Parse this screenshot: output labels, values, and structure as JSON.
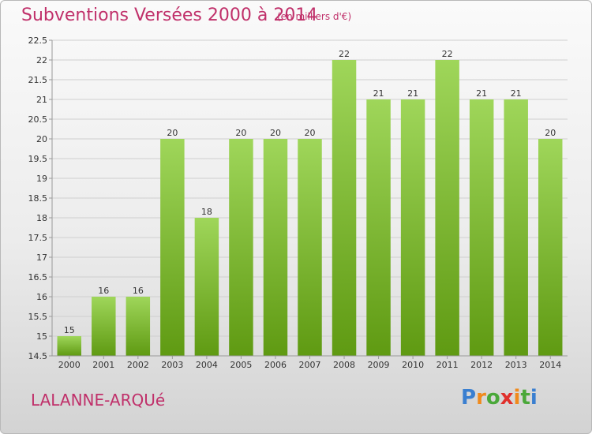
{
  "header": {
    "title": "Subventions Versées 2000 à 2014",
    "subtitle": "(en milliers d'€)"
  },
  "footer": {
    "place": "LALANNE-ARQUé",
    "logo_text": "Proxiti"
  },
  "colors": {
    "title": "#c0306a",
    "bar_light": "#9fd65a",
    "bar_dark": "#5f9a12",
    "grid": "#cfcfcf",
    "logo_letters": [
      "#3a7fd0",
      "#f08a1c",
      "#4aa83a",
      "#e0302c",
      "#f08a1c",
      "#4aa83a",
      "#3a7fd0"
    ]
  },
  "chart_data": {
    "type": "bar",
    "title": "Subventions Versées 2000 à 2014",
    "subtitle": "(en milliers d'€)",
    "categories": [
      "2000",
      "2001",
      "2002",
      "2003",
      "2004",
      "2005",
      "2006",
      "2007",
      "2008",
      "2009",
      "2010",
      "2011",
      "2012",
      "2013",
      "2014"
    ],
    "values": [
      15,
      16,
      16,
      20,
      18,
      20,
      20,
      20,
      22,
      21,
      21,
      22,
      21,
      21,
      20
    ],
    "ylim": [
      14.5,
      22.5
    ],
    "yticks": [
      "14.5",
      "15",
      "15.5",
      "16",
      "16.5",
      "17",
      "17.5",
      "18",
      "18.5",
      "19",
      "19.5",
      "20",
      "20.5",
      "21",
      "21.5",
      "22",
      "22.5"
    ],
    "grid": true,
    "legend": "none"
  }
}
